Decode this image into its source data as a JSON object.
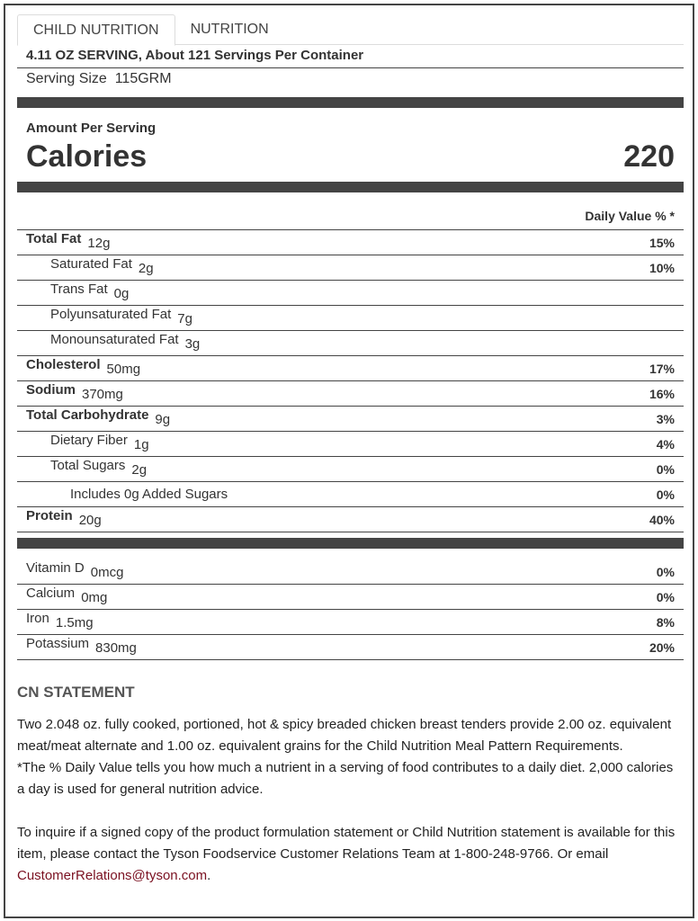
{
  "tabs": [
    "CHILD NUTRITION",
    "NUTRITION"
  ],
  "servings": "4.11 OZ SERVING, About 121 Servings Per Container",
  "serving_size_label": "Serving Size",
  "serving_size": "115GRM",
  "amount_per_serving": "Amount Per Serving",
  "calories_label": "Calories",
  "calories": "220",
  "daily_value_header": "Daily Value % *",
  "nutrients": [
    {
      "name": "Total Fat",
      "amount": "12g",
      "dv": "15%",
      "bold": true,
      "indent": 0
    },
    {
      "name": "Saturated Fat",
      "amount": "2g",
      "dv": "10%",
      "bold": false,
      "indent": 1
    },
    {
      "name": "Trans Fat",
      "amount": "0g",
      "dv": "",
      "bold": false,
      "indent": 1
    },
    {
      "name": "Polyunsaturated Fat",
      "amount": "7g",
      "dv": "",
      "bold": false,
      "indent": 1
    },
    {
      "name": "Monounsaturated Fat",
      "amount": "3g",
      "dv": "",
      "bold": false,
      "indent": 1
    },
    {
      "name": "Cholesterol",
      "amount": "50mg",
      "dv": "17%",
      "bold": true,
      "indent": 0
    },
    {
      "name": "Sodium",
      "amount": "370mg",
      "dv": "16%",
      "bold": true,
      "indent": 0
    },
    {
      "name": "Total Carbohydrate",
      "amount": "9g",
      "dv": "3%",
      "bold": true,
      "indent": 0
    },
    {
      "name": "Dietary Fiber",
      "amount": "1g",
      "dv": "4%",
      "bold": false,
      "indent": 1
    },
    {
      "name": "Total Sugars",
      "amount": "2g",
      "dv": "0%",
      "bold": false,
      "indent": 1
    },
    {
      "name": "Includes 0g Added Sugars",
      "amount": "",
      "dv": "0%",
      "bold": false,
      "indent": 2
    },
    {
      "name": "Protein",
      "amount": "20g",
      "dv": "40%",
      "bold": true,
      "indent": 0
    }
  ],
  "vitamins": [
    {
      "name": "Vitamin D",
      "amount": "0mcg",
      "dv": "0%"
    },
    {
      "name": "Calcium",
      "amount": "0mg",
      "dv": "0%"
    },
    {
      "name": "Iron",
      "amount": "1.5mg",
      "dv": "8%"
    },
    {
      "name": "Potassium",
      "amount": "830mg",
      "dv": "20%"
    }
  ],
  "cn": {
    "heading": "CN STATEMENT",
    "statement": "Two 2.048 oz. fully cooked, portioned, hot & spicy breaded chicken breast tenders provide 2.00 oz. equivalent meat/meat alternate and 1.00 oz. equivalent grains for the Child Nutrition Meal Pattern Requirements.",
    "dv_note": "*The % Daily Value tells you how much a nutrient in a serving of food contributes to a daily diet. 2,000 calories a day is used for general nutrition advice.",
    "inquire": "To inquire if a signed copy of the product formulation statement or Child Nutrition statement is available for this item, please contact the Tyson Foodservice Customer Relations Team at 1-800-248-9766. Or email ",
    "email": "CustomerRelations@tyson.com",
    "end": "."
  },
  "colors": {
    "bar": "#444444",
    "link": "#7a1020"
  }
}
